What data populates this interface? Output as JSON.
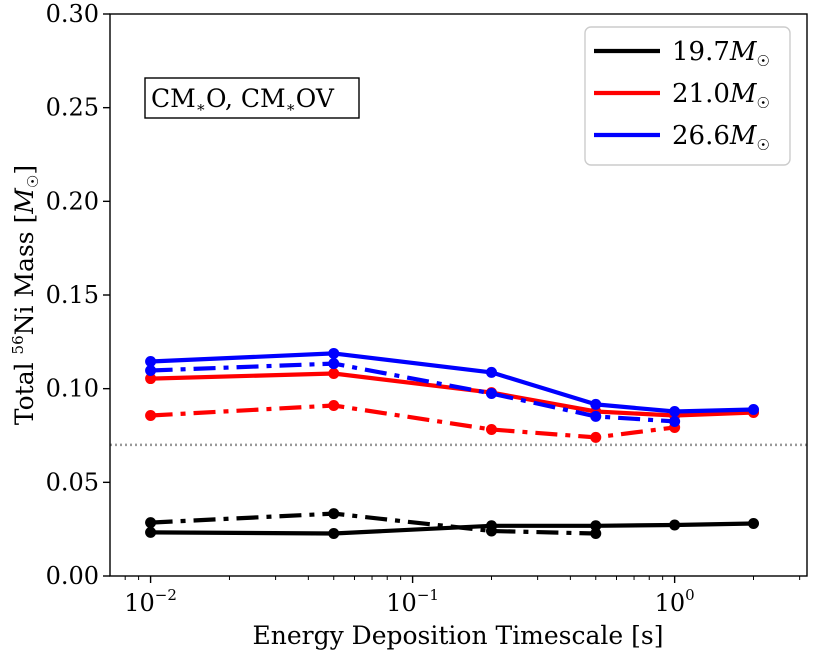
{
  "chart_data": {
    "type": "line",
    "title": "",
    "xlabel": "Energy Deposition Timescale [s]",
    "ylabel": {
      "prefix": "Total ",
      "sup": "56",
      "middle": "Ni Mass [",
      "var": "M",
      "sub": "☉",
      "suffix": "]"
    },
    "xscale": "log",
    "xlim": [
      0.007,
      3.2
    ],
    "ylim": [
      0.0,
      0.3
    ],
    "yticks": [
      "0.00",
      "0.05",
      "0.10",
      "0.15",
      "0.20",
      "0.25",
      "0.30"
    ],
    "xticks": [
      {
        "value": 0.01,
        "base": "10",
        "exp": "−2"
      },
      {
        "value": 0.1,
        "base": "10",
        "exp": "−1"
      },
      {
        "value": 1,
        "base": "10",
        "exp": "0"
      }
    ],
    "reference_line": {
      "y": 0.07,
      "style": "dotted",
      "color": "#999999"
    },
    "annotation": {
      "part1": "CM",
      "sub1": "∗",
      "part2": "O, CM",
      "sub2": "∗",
      "part3": "OV",
      "position": "top-left"
    },
    "legend": {
      "position": "top-right",
      "entries": [
        {
          "value": "19.7",
          "var": "M",
          "sub": "☉",
          "color": "#000000"
        },
        {
          "value": "21.0",
          "var": "M",
          "sub": "☉",
          "color": "#ff0000"
        },
        {
          "value": "26.6",
          "var": "M",
          "sub": "☉",
          "color": "#0000ff"
        }
      ]
    },
    "series": [
      {
        "name": "19.7 CM*O",
        "color": "#000000",
        "style": "solid",
        "x": [
          0.01,
          0.05,
          0.2,
          0.5,
          1.0,
          2.0
        ],
        "y": [
          0.0233,
          0.0227,
          0.0268,
          0.0268,
          0.0272,
          0.028
        ]
      },
      {
        "name": "19.7 CM*OV",
        "color": "#000000",
        "style": "dashdot",
        "x": [
          0.01,
          0.05,
          0.2,
          0.5
        ],
        "y": [
          0.0285,
          0.0333,
          0.024,
          0.0227
        ]
      },
      {
        "name": "21.0 CM*O",
        "color": "#ff0000",
        "style": "solid",
        "x": [
          0.01,
          0.05,
          0.2,
          0.5,
          1.0,
          2.0
        ],
        "y": [
          0.1054,
          0.1081,
          0.0979,
          0.0878,
          0.0857,
          0.0873
        ]
      },
      {
        "name": "21.0 CM*OV",
        "color": "#ff0000",
        "style": "dashdot",
        "x": [
          0.01,
          0.05,
          0.2,
          0.5,
          1.0
        ],
        "y": [
          0.0857,
          0.091,
          0.0782,
          0.074,
          0.0793
        ]
      },
      {
        "name": "26.6 CM*O",
        "color": "#0000ff",
        "style": "solid",
        "x": [
          0.01,
          0.05,
          0.2,
          0.5,
          1.0,
          2.0
        ],
        "y": [
          0.1145,
          0.1188,
          0.1087,
          0.0916,
          0.0878,
          0.0889
        ]
      },
      {
        "name": "26.6 CM*OV",
        "color": "#0000ff",
        "style": "dashdot",
        "x": [
          0.01,
          0.05,
          0.2,
          0.5,
          1.0
        ],
        "y": [
          0.1097,
          0.1134,
          0.0974,
          0.0852,
          0.0825
        ]
      }
    ]
  }
}
